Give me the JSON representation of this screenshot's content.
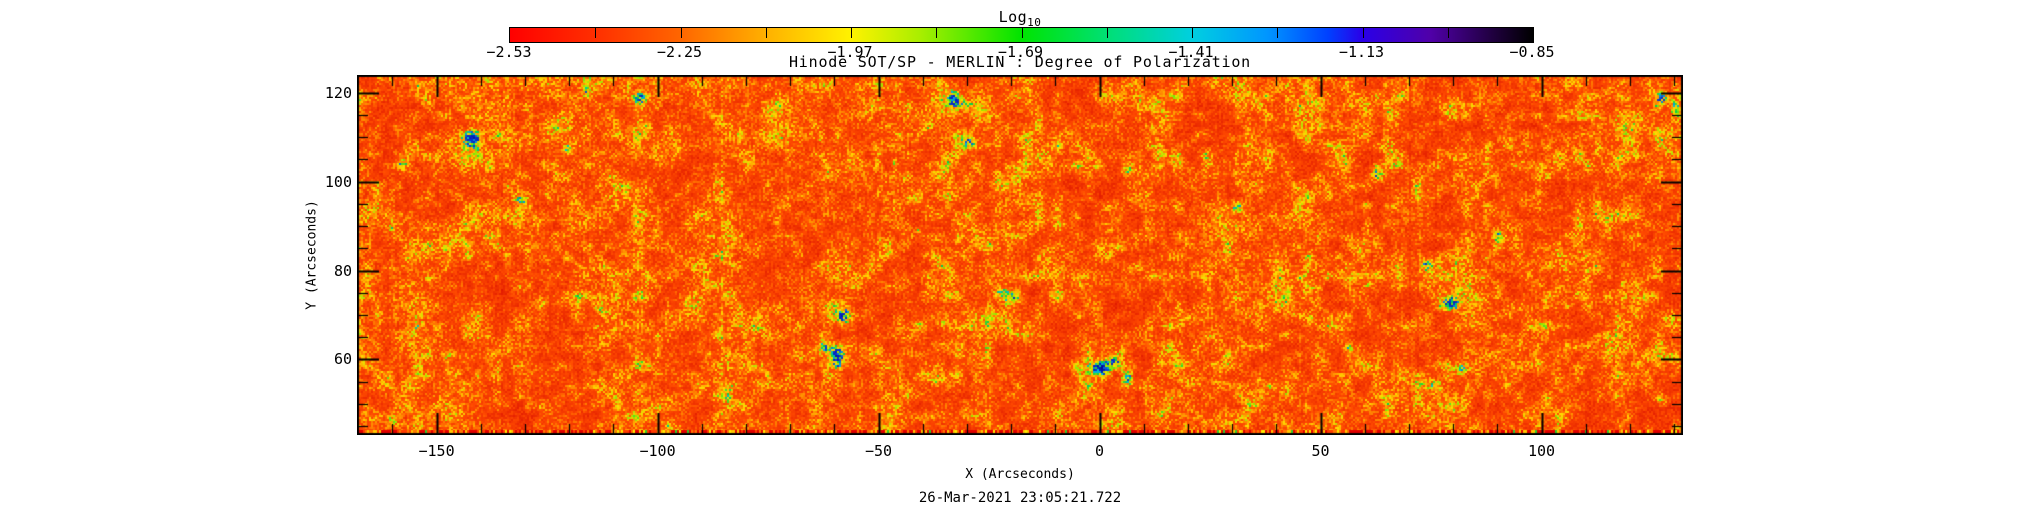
{
  "figure": {
    "title": "Hinode SOT/SP - MERLIN : Degree of Polarization",
    "timestamp": "26-Mar-2021 23:05:21.722",
    "background_color": "#ffffff",
    "text_color": "#000000"
  },
  "colorbar": {
    "title": "Log",
    "title_subscript": "10",
    "range_min": -2.53,
    "range_max": -0.85,
    "tick_values": [
      -2.53,
      -2.25,
      -1.97,
      -1.69,
      -1.41,
      -1.13,
      -0.85
    ],
    "tick_labels": [
      "−2.53",
      "−2.25",
      "−1.97",
      "−1.69",
      "−1.41",
      "−1.13",
      "−0.85"
    ],
    "minor_tick_step": 0.14,
    "gradient": [
      {
        "stop": 0.0,
        "color": "#ff0000"
      },
      {
        "stop": 0.09,
        "color": "#ff3300"
      },
      {
        "stop": 0.167,
        "color": "#ff6600"
      },
      {
        "stop": 0.25,
        "color": "#ffb000"
      },
      {
        "stop": 0.333,
        "color": "#fff200"
      },
      {
        "stop": 0.4,
        "color": "#aaee00"
      },
      {
        "stop": 0.5,
        "color": "#00e400"
      },
      {
        "stop": 0.58,
        "color": "#00e070"
      },
      {
        "stop": 0.667,
        "color": "#00cfe0"
      },
      {
        "stop": 0.74,
        "color": "#0096ff"
      },
      {
        "stop": 0.8,
        "color": "#0040ff"
      },
      {
        "stop": 0.833,
        "color": "#2a00e8"
      },
      {
        "stop": 0.9,
        "color": "#5000a8"
      },
      {
        "stop": 0.96,
        "color": "#200040"
      },
      {
        "stop": 1.0,
        "color": "#000000"
      }
    ]
  },
  "axes": {
    "x": {
      "label": "X (Arcseconds)",
      "min": -168,
      "max": 132,
      "major_ticks": [
        -150,
        -100,
        -50,
        0,
        50,
        100
      ],
      "major_tick_labels": [
        "−150",
        "−100",
        "−50",
        "0",
        "50",
        "100"
      ],
      "minor_tick_step": 10
    },
    "y": {
      "label": "Y (Arcseconds)",
      "min": 43,
      "max": 124,
      "major_ticks": [
        60,
        80,
        100,
        120
      ],
      "major_tick_labels": [
        "60",
        "80",
        "100",
        "120"
      ],
      "minor_tick_step": 5
    }
  },
  "chart_data": {
    "type": "heatmap",
    "title": "Hinode SOT/SP - MERLIN : Degree of Polarization",
    "xlabel": "X (Arcseconds)",
    "ylabel": "Y (Arcseconds)",
    "xlim": [
      -168,
      132
    ],
    "ylim": [
      43,
      124
    ],
    "value_label": "Log10 Degree of Polarization",
    "value_range": [
      -2.53,
      -0.85
    ],
    "colormap": "red-orange-yellow-green-cyan-blue-purple-black (red = low, black = high)",
    "annotation": "26-Mar-2021 23:05:21.722",
    "field_description": "Quiet-Sun scan: background log10 polarization about -2.5 to -2.2 (red/orange), speckled network lanes near -2.0 to -1.9 (yellow), small knots -1.8 to -1.5 (green), strongest magnetic patches -1.4 to -1.0 (cyan/blue); bottom scan row shows striped red/orange/yellow artifact band",
    "notable_features": [
      {
        "x": -142,
        "y": 110,
        "log10_pol": -1.15,
        "note": "vertical blue streak"
      },
      {
        "x": -60,
        "y": 61,
        "log10_pol": -1.0,
        "note": "strongest dark-blue patch"
      },
      {
        "x": -58,
        "y": 70,
        "log10_pol": -1.25,
        "note": "blue knot above main patch"
      },
      {
        "x": -63,
        "y": 63,
        "log10_pol": -1.45,
        "note": "cyan companion"
      },
      {
        "x": -33,
        "y": 119,
        "log10_pol": -1.25,
        "note": "blue knot near top"
      },
      {
        "x": -30,
        "y": 109,
        "log10_pol": -1.35,
        "note": "cyan knot"
      },
      {
        "x": -19,
        "y": 74,
        "log10_pol": -1.3,
        "note": "cyan patch"
      },
      {
        "x": 0,
        "y": 58,
        "log10_pol": -1.15,
        "note": "cyan-blue cluster"
      },
      {
        "x": 6,
        "y": 56,
        "log10_pol": -1.35,
        "note": "cyan cluster"
      },
      {
        "x": 3,
        "y": 60,
        "log10_pol": -1.5,
        "note": "green-cyan halo"
      },
      {
        "x": 24,
        "y": 106,
        "log10_pol": -1.4,
        "note": "cyan knot"
      },
      {
        "x": 79,
        "y": 73,
        "log10_pol": -1.4,
        "note": "cyan knot"
      },
      {
        "x": -104,
        "y": 119,
        "log10_pol": -1.5,
        "note": "green-cyan knot"
      },
      {
        "x": -158,
        "y": 104,
        "log10_pol": -1.5,
        "note": "green-cyan patch at left"
      },
      {
        "x": -126,
        "y": 73,
        "log10_pol": -1.55,
        "note": "small cyan dot"
      },
      {
        "x": 127,
        "y": 119,
        "log10_pol": -1.55,
        "note": "green cluster top right"
      },
      {
        "x": 130,
        "y": 117,
        "log10_pol": -1.6,
        "note": "green cluster edge"
      }
    ]
  }
}
